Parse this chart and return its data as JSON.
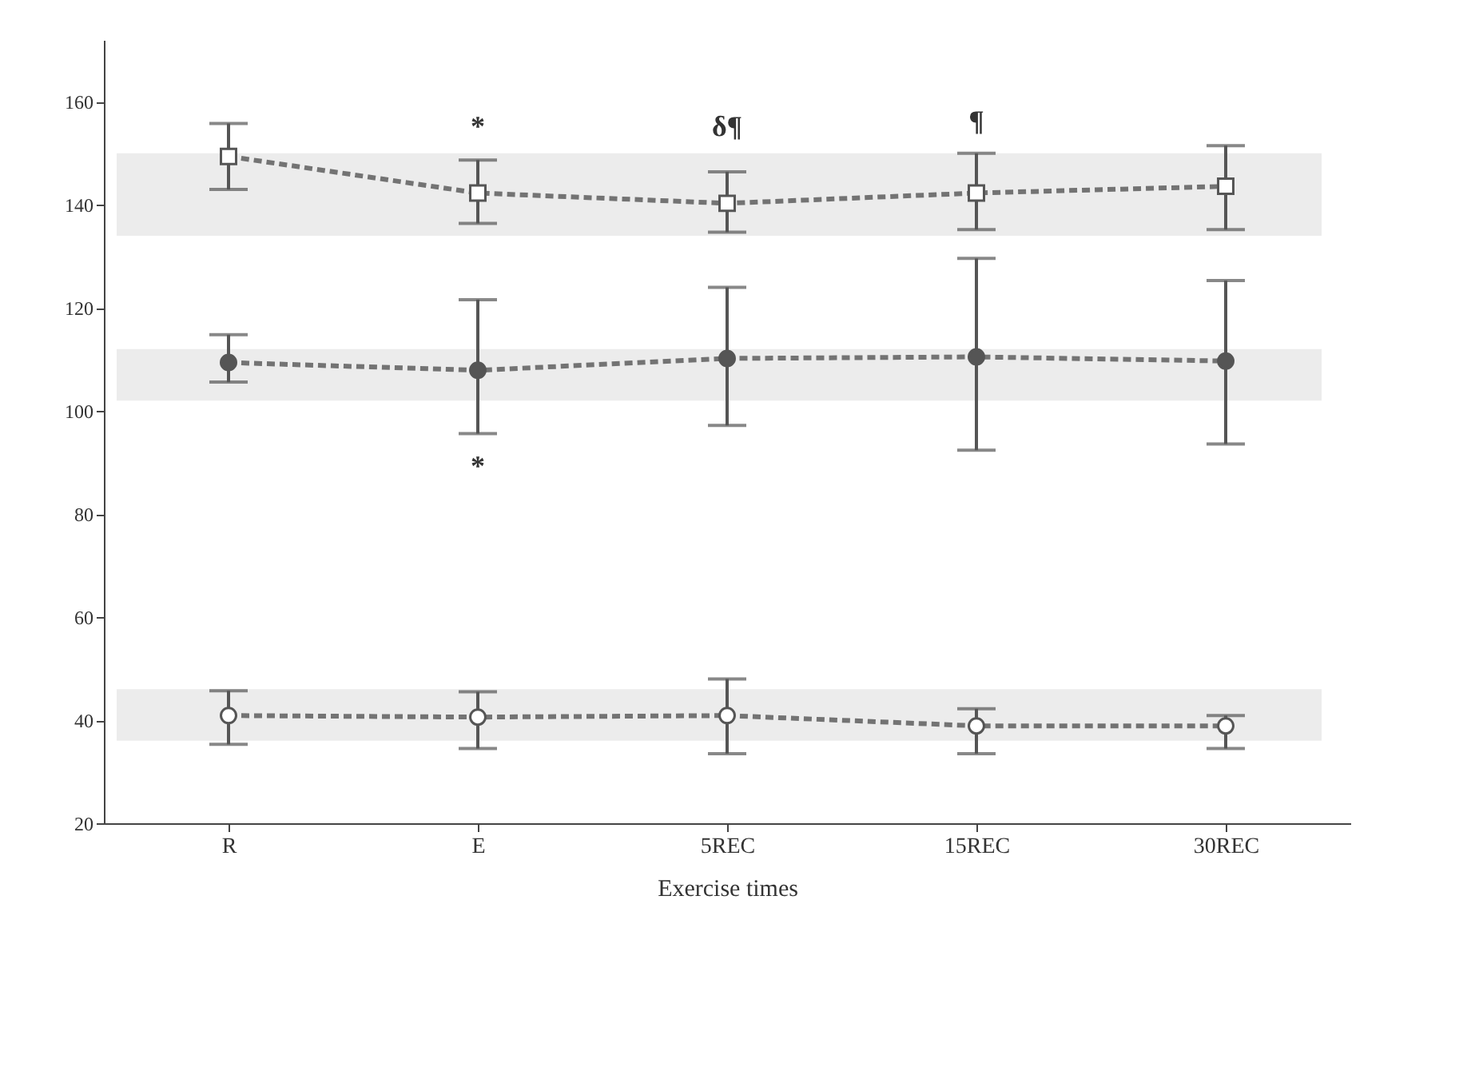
{
  "chart_data": {
    "type": "line",
    "xlabel": "Exercise times",
    "categories": [
      "R",
      "E",
      "5REC",
      "15REC",
      "30REC"
    ],
    "series": [
      {
        "color": "#555555",
        "marker": "square",
        "line_style": "dashed",
        "values": [
          149.4,
          142.3,
          140.3,
          142.3,
          143.6
        ],
        "errors": [
          [
            143.0,
            155.8
          ],
          [
            136.4,
            148.7
          ],
          [
            134.7,
            146.4
          ],
          [
            135.2,
            150.0
          ],
          [
            135.2,
            151.5
          ]
        ]
      },
      {
        "color": "#555555",
        "marker": "circle",
        "line_style": "dashed",
        "values": [
          109.4,
          107.9,
          110.2,
          110.5,
          109.7
        ],
        "errors": [
          [
            105.6,
            114.8
          ],
          [
            95.6,
            121.6
          ],
          [
            97.2,
            124.0
          ],
          [
            92.4,
            129.6
          ],
          [
            93.6,
            125.3
          ]
        ]
      },
      {
        "color": "#555555",
        "marker": "circle",
        "line_style": "dashed",
        "values": [
          40.9,
          40.6,
          40.9,
          38.9,
          38.9
        ],
        "errors": [
          [
            35.3,
            45.7
          ],
          [
            34.5,
            45.5
          ],
          [
            33.5,
            48.0
          ],
          [
            33.5,
            42.2
          ],
          [
            34.5,
            40.9
          ]
        ]
      }
    ],
    "bands": [
      {
        "axis": "y",
        "from": 134,
        "to": 150,
        "color": "#ececec"
      },
      {
        "axis": "y",
        "from": 102,
        "to": 112,
        "color": "#ececec"
      },
      {
        "axis": "y",
        "from": 36,
        "to": 46,
        "color": "#ececec"
      }
    ],
    "annotations": [
      "*",
      "δ¶",
      "¶",
      "*"
    ],
    "ylim": [
      20,
      172
    ],
    "yticks": [
      20,
      40,
      60,
      80,
      100,
      120,
      140,
      160
    ],
    "grid": false
  }
}
